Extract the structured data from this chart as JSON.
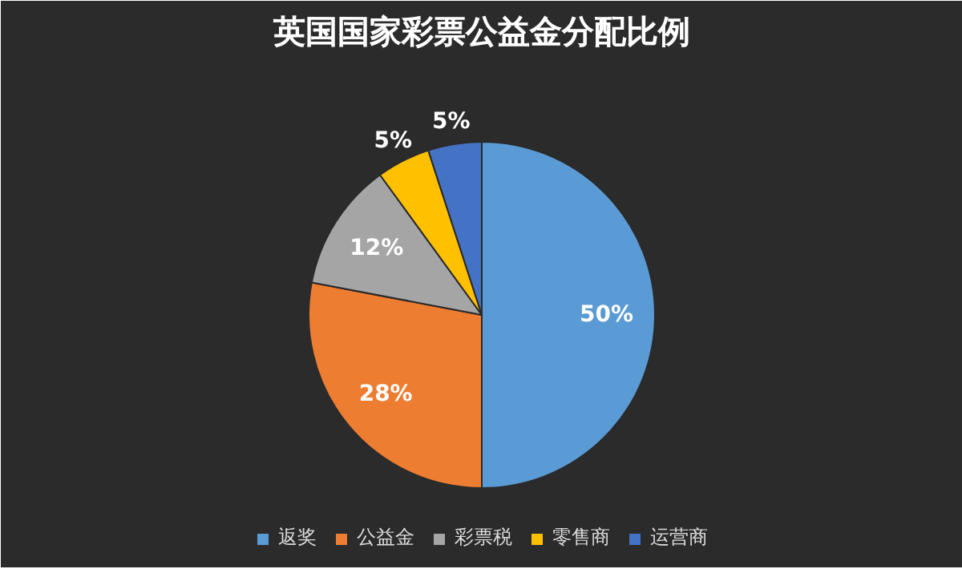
{
  "chart_data": {
    "type": "pie",
    "title": "英国国家彩票公益金分配比例",
    "categories": [
      "返奖",
      "公益金",
      "彩票税",
      "零售商",
      "运营商"
    ],
    "values": [
      50,
      28,
      12,
      5,
      5
    ],
    "colors": [
      "#5b9bd5",
      "#ed7d31",
      "#a5a5a5",
      "#ffc000",
      "#4472c4"
    ],
    "value_labels": [
      "50%",
      "28%",
      "12%",
      "5%",
      "5%"
    ],
    "legend": "bottom"
  }
}
